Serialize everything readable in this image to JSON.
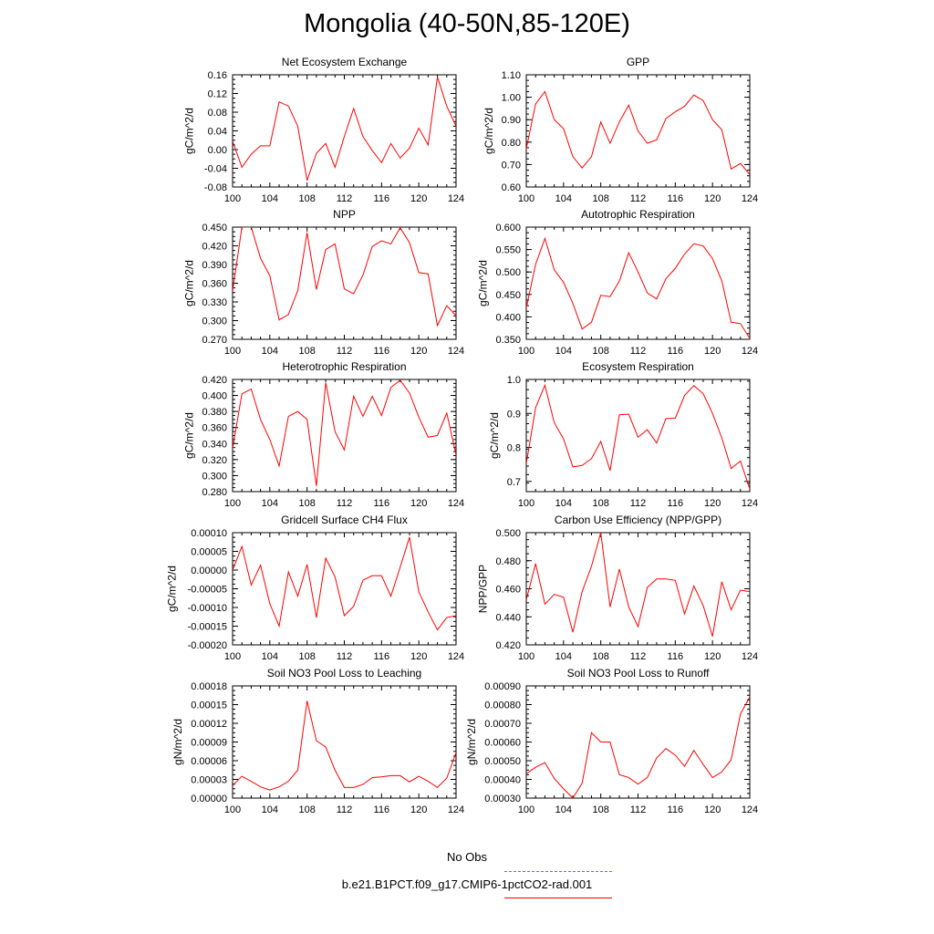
{
  "title": "Mongolia (40-50N,85-120E)",
  "colors": {
    "series": "#ff0000",
    "obs": "#6a6adc",
    "axis": "#000000"
  },
  "legend": {
    "entries": [
      {
        "label": "No Obs",
        "color": "#6a6adc",
        "style": "dashed"
      },
      {
        "label": "b.e21.B1PCT.f09_g17.CMIP6-1pctCO2-rad.001",
        "color": "#ff0000",
        "style": "solid"
      }
    ]
  },
  "chart_data": [
    {
      "type": "line",
      "title": "Net Ecosystem Exchange",
      "ylabel": "gC/m^2/d",
      "xlabel": "",
      "xlim": [
        100,
        124
      ],
      "ylim": [
        -0.08,
        0.16
      ],
      "xticks": [
        "100",
        "104",
        "108",
        "112",
        "116",
        "120",
        "124"
      ],
      "yticks": [
        "-0.08",
        "-0.04",
        "0.00",
        "0.04",
        "0.08",
        "0.12",
        "0.16"
      ],
      "x": [
        100,
        101,
        102,
        103,
        104,
        105,
        106,
        107,
        108,
        109,
        110,
        111,
        112,
        113,
        114,
        115,
        116,
        117,
        118,
        119,
        120,
        121,
        122,
        123,
        124
      ],
      "values": [
        0.018,
        -0.038,
        -0.01,
        0.008,
        0.008,
        0.102,
        0.093,
        0.05,
        -0.066,
        -0.008,
        0.013,
        -0.038,
        0.028,
        0.088,
        0.028,
        -0.002,
        -0.028,
        0.013,
        -0.018,
        0.003,
        0.046,
        0.01,
        0.155,
        0.093,
        0.05
      ]
    },
    {
      "type": "line",
      "title": "GPP",
      "ylabel": "gC/m^2/d",
      "xlabel": "",
      "xlim": [
        100,
        124
      ],
      "ylim": [
        0.6,
        1.1
      ],
      "xticks": [
        "100",
        "104",
        "108",
        "112",
        "116",
        "120",
        "124"
      ],
      "yticks": [
        "0.60",
        "0.70",
        "0.80",
        "0.90",
        "1.00",
        "1.10"
      ],
      "x": [
        100,
        101,
        102,
        103,
        104,
        105,
        106,
        107,
        108,
        109,
        110,
        111,
        112,
        113,
        114,
        115,
        116,
        117,
        118,
        119,
        120,
        121,
        122,
        123,
        124
      ],
      "values": [
        0.77,
        0.97,
        1.025,
        0.9,
        0.86,
        0.735,
        0.685,
        0.735,
        0.89,
        0.795,
        0.89,
        0.965,
        0.85,
        0.795,
        0.81,
        0.905,
        0.935,
        0.96,
        1.01,
        0.985,
        0.9,
        0.855,
        0.68,
        0.705,
        0.655
      ]
    },
    {
      "type": "line",
      "title": "NPP",
      "ylabel": "gC/m^2/d",
      "xlabel": "",
      "xlim": [
        100,
        124
      ],
      "ylim": [
        0.27,
        0.45
      ],
      "xticks": [
        "100",
        "104",
        "108",
        "112",
        "116",
        "120",
        "124"
      ],
      "yticks": [
        "0.270",
        "0.300",
        "0.330",
        "0.360",
        "0.390",
        "0.420",
        "0.450"
      ],
      "x": [
        100,
        101,
        102,
        103,
        104,
        105,
        106,
        107,
        108,
        109,
        110,
        111,
        112,
        113,
        114,
        115,
        116,
        117,
        118,
        119,
        120,
        121,
        122,
        123,
        124
      ],
      "values": [
        0.347,
        0.45,
        0.45,
        0.4,
        0.372,
        0.301,
        0.31,
        0.348,
        0.441,
        0.35,
        0.414,
        0.423,
        0.351,
        0.343,
        0.373,
        0.419,
        0.428,
        0.423,
        0.449,
        0.425,
        0.377,
        0.375,
        0.292,
        0.324,
        0.308
      ]
    },
    {
      "type": "line",
      "title": "Autotrophic Respiration",
      "ylabel": "gC/m^2/d",
      "xlabel": "",
      "xlim": [
        100,
        124
      ],
      "ylim": [
        0.35,
        0.6
      ],
      "xticks": [
        "100",
        "104",
        "108",
        "112",
        "116",
        "120",
        "124"
      ],
      "yticks": [
        "0.350",
        "0.400",
        "0.450",
        "0.500",
        "0.550",
        "0.600"
      ],
      "x": [
        100,
        101,
        102,
        103,
        104,
        105,
        106,
        107,
        108,
        109,
        110,
        111,
        112,
        113,
        114,
        115,
        116,
        117,
        118,
        119,
        120,
        121,
        122,
        123,
        124
      ],
      "values": [
        0.42,
        0.517,
        0.575,
        0.505,
        0.477,
        0.43,
        0.373,
        0.388,
        0.448,
        0.445,
        0.48,
        0.543,
        0.5,
        0.453,
        0.44,
        0.485,
        0.508,
        0.54,
        0.563,
        0.558,
        0.53,
        0.48,
        0.388,
        0.385,
        0.352
      ]
    },
    {
      "type": "line",
      "title": "Heterotrophic Respiration",
      "ylabel": "gC/m^2/d",
      "xlabel": "",
      "xlim": [
        100,
        124
      ],
      "ylim": [
        0.28,
        0.42
      ],
      "xticks": [
        "100",
        "104",
        "108",
        "112",
        "116",
        "120",
        "124"
      ],
      "yticks": [
        "0.280",
        "0.300",
        "0.320",
        "0.340",
        "0.360",
        "0.380",
        "0.400",
        "0.420"
      ],
      "x": [
        100,
        101,
        102,
        103,
        104,
        105,
        106,
        107,
        108,
        109,
        110,
        111,
        112,
        113,
        114,
        115,
        116,
        117,
        118,
        119,
        120,
        121,
        122,
        123,
        124
      ],
      "values": [
        0.334,
        0.402,
        0.408,
        0.37,
        0.345,
        0.312,
        0.374,
        0.38,
        0.37,
        0.287,
        0.416,
        0.355,
        0.332,
        0.399,
        0.374,
        0.399,
        0.375,
        0.41,
        0.419,
        0.403,
        0.373,
        0.348,
        0.35,
        0.378,
        0.326
      ]
    },
    {
      "type": "line",
      "title": "Ecosystem Respiration",
      "ylabel": "gC/m^2/d",
      "xlabel": "",
      "xlim": [
        100,
        124
      ],
      "ylim": [
        0.67,
        1.0
      ],
      "xticks": [
        "100",
        "104",
        "108",
        "112",
        "116",
        "120",
        "124"
      ],
      "yticks": [
        "0.7",
        "0.8",
        "0.9",
        "1.0"
      ],
      "x": [
        100,
        101,
        102,
        103,
        104,
        105,
        106,
        107,
        108,
        109,
        110,
        111,
        112,
        113,
        114,
        115,
        116,
        117,
        118,
        119,
        120,
        121,
        122,
        123,
        124
      ],
      "values": [
        0.752,
        0.917,
        0.983,
        0.873,
        0.825,
        0.743,
        0.747,
        0.767,
        0.818,
        0.732,
        0.896,
        0.898,
        0.83,
        0.852,
        0.813,
        0.885,
        0.886,
        0.953,
        0.982,
        0.958,
        0.9,
        0.828,
        0.738,
        0.76,
        0.678
      ]
    },
    {
      "type": "line",
      "title": "Gridcell Surface CH4 Flux",
      "ylabel": "gC/m^2/d",
      "xlabel": "",
      "xlim": [
        100,
        124
      ],
      "ylim": [
        -0.0002,
        0.0001
      ],
      "xticks": [
        "100",
        "104",
        "108",
        "112",
        "116",
        "120",
        "124"
      ],
      "yticks": [
        "-0.00020",
        "-0.00015",
        "-0.00010",
        "-0.00005",
        "0.00000",
        "0.00005",
        "0.00010"
      ],
      "x": [
        100,
        101,
        102,
        103,
        104,
        105,
        106,
        107,
        108,
        109,
        110,
        111,
        112,
        113,
        114,
        115,
        116,
        117,
        118,
        119,
        120,
        121,
        122,
        123,
        124
      ],
      "values": [
        0.0,
        6.3e-05,
        -4e-05,
        1.3e-05,
        -9e-05,
        -0.00015,
        -5e-06,
        -7e-05,
        1.5e-05,
        -0.000127,
        3.2e-05,
        -1.8e-05,
        -0.000122,
        -9.7e-05,
        -2.7e-05,
        -1.5e-05,
        -1.5e-05,
        -7e-05,
        8e-06,
        8.8e-05,
        -5.8e-05,
        -0.000112,
        -0.00016,
        -0.000127,
        -0.000122
      ]
    },
    {
      "type": "line",
      "title": "Carbon Use Efficiency (NPP/GPP)",
      "ylabel": "NPP/GPP",
      "xlabel": "",
      "xlim": [
        100,
        124
      ],
      "ylim": [
        0.42,
        0.5
      ],
      "xticks": [
        "100",
        "104",
        "108",
        "112",
        "116",
        "120",
        "124"
      ],
      "yticks": [
        "0.420",
        "0.440",
        "0.460",
        "0.480",
        "0.500"
      ],
      "x": [
        100,
        101,
        102,
        103,
        104,
        105,
        106,
        107,
        108,
        109,
        110,
        111,
        112,
        113,
        114,
        115,
        116,
        117,
        118,
        119,
        120,
        121,
        122,
        123,
        124
      ],
      "values": [
        0.452,
        0.478,
        0.449,
        0.456,
        0.454,
        0.429,
        0.458,
        0.476,
        0.5,
        0.447,
        0.474,
        0.447,
        0.433,
        0.461,
        0.467,
        0.467,
        0.466,
        0.442,
        0.462,
        0.448,
        0.426,
        0.465,
        0.445,
        0.459,
        0.458
      ]
    },
    {
      "type": "line",
      "title": "Soil NO3 Pool Loss to Leaching",
      "ylabel": "gN/m^2/d",
      "xlabel": "",
      "xlim": [
        100,
        124
      ],
      "ylim": [
        0.0,
        0.00018
      ],
      "xticks": [
        "100",
        "104",
        "108",
        "112",
        "116",
        "120",
        "124"
      ],
      "yticks": [
        "0.00000",
        "0.00003",
        "0.00006",
        "0.00009",
        "0.00012",
        "0.00015",
        "0.00018"
      ],
      "x": [
        100,
        101,
        102,
        103,
        104,
        105,
        106,
        107,
        108,
        109,
        110,
        111,
        112,
        113,
        114,
        115,
        116,
        117,
        118,
        119,
        120,
        121,
        122,
        123,
        124
      ],
      "values": [
        2e-05,
        3.5e-05,
        2.7e-05,
        1.8e-05,
        1.3e-05,
        1.8e-05,
        2.7e-05,
        4.5e-05,
        0.000156,
        9.2e-05,
        8.2e-05,
        4.5e-05,
        1.7e-05,
        1.7e-05,
        2.2e-05,
        3.3e-05,
        3.4e-05,
        3.6e-05,
        3.6e-05,
        2.6e-05,
        3.5e-05,
        2.7e-05,
        1.7e-05,
        3.2e-05,
        7.3e-05
      ]
    },
    {
      "type": "line",
      "title": "Soil NO3 Pool Loss to Runoff",
      "ylabel": "gN/m^2/d",
      "xlabel": "",
      "xlim": [
        100,
        124
      ],
      "ylim": [
        0.0003,
        0.0009
      ],
      "xticks": [
        "100",
        "104",
        "108",
        "112",
        "116",
        "120",
        "124"
      ],
      "yticks": [
        "0.00030",
        "0.00040",
        "0.00050",
        "0.00060",
        "0.00070",
        "0.00080",
        "0.00090"
      ],
      "x": [
        100,
        101,
        102,
        103,
        104,
        105,
        106,
        107,
        108,
        109,
        110,
        111,
        112,
        113,
        114,
        115,
        116,
        117,
        118,
        119,
        120,
        121,
        122,
        123,
        124
      ],
      "values": [
        0.00043,
        0.000465,
        0.00049,
        0.000405,
        0.00035,
        0.0003,
        0.00038,
        0.00065,
        0.0006,
        0.0006,
        0.000425,
        0.00041,
        0.000375,
        0.00041,
        0.000515,
        0.000565,
        0.00053,
        0.00047,
        0.000555,
        0.00048,
        0.00041,
        0.00044,
        0.000505,
        0.00075,
        0.00084
      ]
    }
  ]
}
